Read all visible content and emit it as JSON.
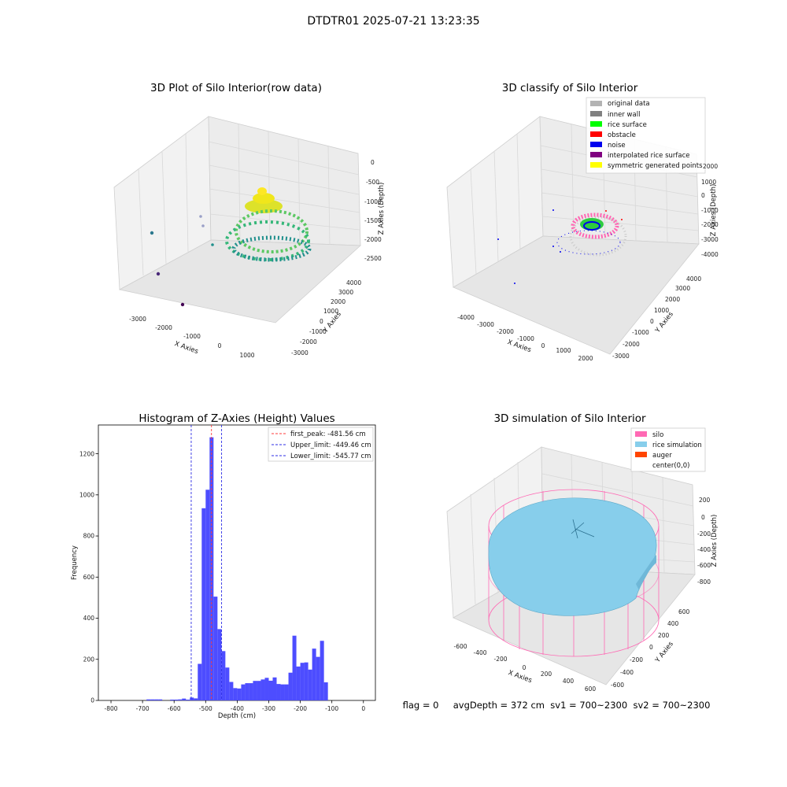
{
  "figure": {
    "suptitle": "DTDTR01 2025-07-21 13:23:35",
    "status_line": "flag = 0     avgDepth = 372 cm  sv1 = 700~2300  sv2 = 700~2300"
  },
  "colors": {
    "histogram_bar": "#4d4dff",
    "first_peak_line": "#ff3b3b",
    "limit_lines": "#2e2ee6",
    "silo": "#ff69b4",
    "rice_simulation": "#87ceeb",
    "auger": "#ff4500",
    "original_data": "#b3b3b3",
    "inner_wall": "#808080",
    "rice_surface": "#00ff00",
    "obstacle": "#ff0000",
    "noise": "#0000ee",
    "interpolated_rice_surface": "#800080",
    "symmetric_generated_points": "#ffff00"
  },
  "chart_data": [
    {
      "type": "scatter",
      "title": "3D Plot of Silo Interior(row data)",
      "xlabel": "X Axies",
      "ylabel": "Y Axies",
      "zlabel": "Z Axies (Depth)",
      "x_ticks": [
        "-3000",
        "-2000",
        "-1000",
        "0",
        "1000"
      ],
      "y_ticks": [
        "-3000",
        "-2000",
        "-1000",
        "0",
        "1000",
        "2000",
        "3000",
        "4000"
      ],
      "z_ticks": [
        "0",
        "-500",
        "-1000",
        "-1500",
        "-2000",
        "-2500"
      ]
    },
    {
      "type": "scatter",
      "title": "3D classify of Silo Interior",
      "xlabel": "X Axies",
      "ylabel": "Y Axies",
      "zlabel": "Z Axies (Depth)",
      "x_ticks": [
        "-4000",
        "-3000",
        "-2000",
        "-1000",
        "0",
        "1000",
        "2000"
      ],
      "y_ticks": [
        "-3000",
        "-2000",
        "-1000",
        "0",
        "1000",
        "2000",
        "3000",
        "4000"
      ],
      "z_ticks": [
        "2000",
        "1000",
        "0",
        "-1000",
        "-2000",
        "-3000",
        "-4000"
      ],
      "legend": [
        {
          "label": "original data",
          "color": "#b3b3b3"
        },
        {
          "label": "inner wall",
          "color": "#808080"
        },
        {
          "label": "rice surface",
          "color": "#00ff00"
        },
        {
          "label": "obstacle",
          "color": "#ff0000"
        },
        {
          "label": "noise",
          "color": "#0000ee"
        },
        {
          "label": "interpolated rice surface",
          "color": "#800080"
        },
        {
          "label": "symmetric generated points",
          "color": "#ffff00"
        }
      ],
      "legend_position": "top-right"
    },
    {
      "type": "bar",
      "title": "Histogram of Z-Axies (Height) Values",
      "xlabel": "Depth (cm)",
      "ylabel": "Frequency",
      "xlim": [
        -840,
        38
      ],
      "ylim": [
        0,
        1340
      ],
      "x_ticks": [
        -800,
        -700,
        -600,
        -500,
        -400,
        -300,
        -200,
        -100,
        0
      ],
      "y_ticks": [
        0,
        200,
        400,
        600,
        800,
        1000,
        1200
      ],
      "bin_width": 12.5,
      "bins": [
        {
          "x": -687.5,
          "count": 5
        },
        {
          "x": -675,
          "count": 5
        },
        {
          "x": -662.5,
          "count": 5
        },
        {
          "x": -650,
          "count": 5
        },
        {
          "x": -612.5,
          "count": 4
        },
        {
          "x": -600,
          "count": 4
        },
        {
          "x": -587.5,
          "count": 5
        },
        {
          "x": -575,
          "count": 9
        },
        {
          "x": -562.5,
          "count": 4
        },
        {
          "x": -550,
          "count": 14
        },
        {
          "x": -537.5,
          "count": 10
        },
        {
          "x": -525,
          "count": 178
        },
        {
          "x": -512.5,
          "count": 935
        },
        {
          "x": -500,
          "count": 1025
        },
        {
          "x": -487.5,
          "count": 1280
        },
        {
          "x": -475,
          "count": 505
        },
        {
          "x": -462.5,
          "count": 347
        },
        {
          "x": -450,
          "count": 240
        },
        {
          "x": -437.5,
          "count": 160
        },
        {
          "x": -425,
          "count": 90
        },
        {
          "x": -412.5,
          "count": 60
        },
        {
          "x": -400,
          "count": 58
        },
        {
          "x": -387.5,
          "count": 78
        },
        {
          "x": -375,
          "count": 84
        },
        {
          "x": -362.5,
          "count": 84
        },
        {
          "x": -350,
          "count": 95
        },
        {
          "x": -337.5,
          "count": 95
        },
        {
          "x": -325,
          "count": 102
        },
        {
          "x": -312.5,
          "count": 110
        },
        {
          "x": -300,
          "count": 96
        },
        {
          "x": -287.5,
          "count": 112
        },
        {
          "x": -275,
          "count": 80
        },
        {
          "x": -262.5,
          "count": 78
        },
        {
          "x": -250,
          "count": 78
        },
        {
          "x": -237.5,
          "count": 135
        },
        {
          "x": -225,
          "count": 315
        },
        {
          "x": -212.5,
          "count": 165
        },
        {
          "x": -200,
          "count": 183
        },
        {
          "x": -187.5,
          "count": 185
        },
        {
          "x": -175,
          "count": 150
        },
        {
          "x": -162.5,
          "count": 252
        },
        {
          "x": -150,
          "count": 212
        },
        {
          "x": -137.5,
          "count": 290
        },
        {
          "x": -125,
          "count": 88
        }
      ],
      "vlines": [
        {
          "label": "first_peak: -481.56 cm",
          "x": -481.56,
          "color": "#ff3b3b"
        },
        {
          "label": "Upper_limit: -449.46 cm",
          "x": -449.46,
          "color": "#2e2ee6"
        },
        {
          "label": "Lower_limit: -545.77 cm",
          "x": -545.77,
          "color": "#2e2ee6"
        }
      ],
      "legend_position": "top-right"
    },
    {
      "type": "surface",
      "title": "3D simulation of Silo Interior",
      "xlabel": "X Axies",
      "ylabel": "Y Axies",
      "zlabel": "Z Axies (Depth)",
      "x_ticks": [
        "-600",
        "-400",
        "-200",
        "0",
        "200",
        "400",
        "600"
      ],
      "y_ticks": [
        "-600",
        "-400",
        "-200",
        "0",
        "200",
        "400",
        "600"
      ],
      "z_ticks": [
        "200",
        "0",
        "-200",
        "-400",
        "-600",
        "-800"
      ],
      "legend": [
        {
          "label": "silo",
          "color": "#ff69b4"
        },
        {
          "label": "rice simulation",
          "color": "#87ceeb"
        },
        {
          "label": "auger",
          "color": "#ff4500"
        },
        {
          "label": "center(0,0)",
          "color": ""
        }
      ],
      "legend_position": "top-right"
    }
  ]
}
